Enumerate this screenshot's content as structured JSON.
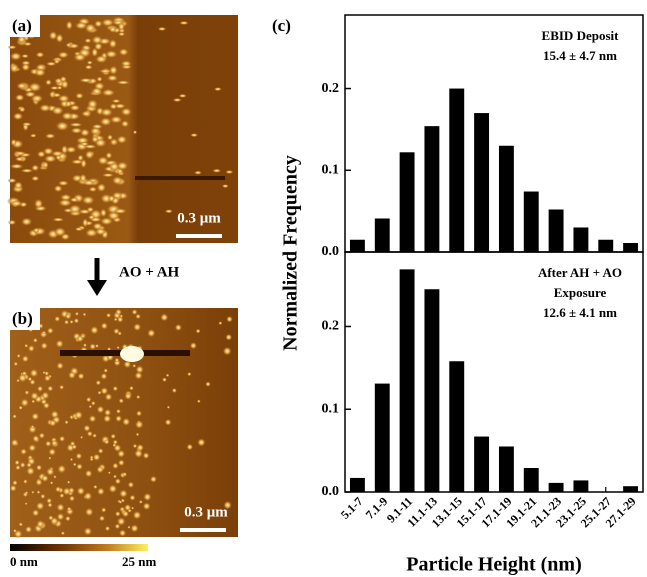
{
  "panel_a": {
    "label": "(a)",
    "scale_bar": "0.3 μm"
  },
  "arrow_label": "AO + AH",
  "panel_b": {
    "label": "(b)",
    "scale_bar": "0.3 μm"
  },
  "colorbar": {
    "min_label": "0 nm",
    "max_label": "25 nm"
  },
  "panel_c": {
    "label": "(c)",
    "ylabel": "Normalized Frequency",
    "xlabel": "Particle Height (nm)"
  },
  "chart_data": [
    {
      "type": "bar",
      "annotations": [
        "EBID Deposit",
        "15.4 ± 4.7 nm"
      ],
      "values": [
        0.015,
        0.041,
        0.122,
        0.154,
        0.2,
        0.17,
        0.13,
        0.074,
        0.052,
        0.03,
        0.015,
        0.011
      ],
      "color": "#000000",
      "ylim": [
        0,
        0.29
      ],
      "yticks": [
        {
          "value": 0,
          "label": "0.0"
        },
        0.1,
        0.2
      ]
    },
    {
      "type": "bar",
      "annotations": [
        "After AH + AO",
        "Exposure",
        "12.6 ± 4.1 nm"
      ],
      "categories": [
        "5.1-7",
        "7.1-9",
        "9.1-11",
        "11.1-13",
        "13.1-15",
        "15.1-17",
        "17.1-19",
        "19.1-21",
        "21.1-23",
        "23.1-25",
        "25.1-27",
        "27.1-29"
      ],
      "values": [
        0.017,
        0.131,
        0.269,
        0.245,
        0.158,
        0.067,
        0.055,
        0.029,
        0.011,
        0.014,
        0,
        0.007
      ],
      "color": "#000000",
      "ylim": [
        0,
        0.29
      ],
      "yticks": [
        {
          "value": 0,
          "label": "0.0"
        },
        0.1,
        0.2
      ]
    }
  ]
}
